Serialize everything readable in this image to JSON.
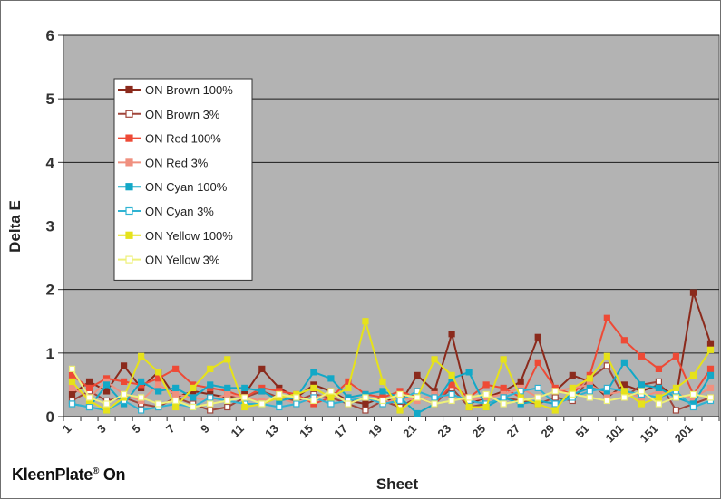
{
  "chart_data": {
    "type": "line",
    "xlabel": "Sheet",
    "ylabel": "Delta E",
    "ylim": [
      0,
      6
    ],
    "yticks": [
      0,
      1,
      2,
      3,
      4,
      5,
      6
    ],
    "grid": true,
    "legend_position": "upper-left",
    "x": [
      "1",
      "2",
      "3",
      "4",
      "5",
      "6",
      "7",
      "8",
      "9",
      "10",
      "11",
      "12",
      "13",
      "14",
      "15",
      "16",
      "17",
      "18",
      "19",
      "20",
      "21",
      "22",
      "23",
      "24",
      "25",
      "26",
      "27",
      "28",
      "29",
      "30",
      "51",
      "76",
      "101",
      "126",
      "151",
      "176",
      "201",
      "226"
    ],
    "xtick_labels": [
      "1",
      "3",
      "5",
      "7",
      "9",
      "11",
      "13",
      "15",
      "17",
      "19",
      "21",
      "23",
      "25",
      "27",
      "29",
      "51",
      "101",
      "151",
      "201"
    ],
    "series": [
      {
        "name": "ON Brown 100%",
        "color": "#8b2a1c",
        "marker": "filled-square",
        "values": [
          0.35,
          0.55,
          0.4,
          0.8,
          0.45,
          0.7,
          0.3,
          0.4,
          0.35,
          0.3,
          0.35,
          0.75,
          0.45,
          0.3,
          0.5,
          0.4,
          0.25,
          0.2,
          0.3,
          0.2,
          0.65,
          0.4,
          1.3,
          0.2,
          0.3,
          0.4,
          0.55,
          1.25,
          0.4,
          0.65,
          0.55,
          0.3,
          0.5,
          0.4,
          0.5,
          0.3,
          1.95,
          1.15
        ]
      },
      {
        "name": "ON Brown 3%",
        "color": "#a0453a",
        "marker": "open-square",
        "values": [
          0.25,
          0.4,
          0.25,
          0.3,
          0.2,
          0.15,
          0.3,
          0.2,
          0.1,
          0.15,
          0.3,
          0.4,
          0.3,
          0.25,
          0.35,
          0.3,
          0.2,
          0.1,
          0.25,
          0.15,
          0.3,
          0.2,
          0.45,
          0.15,
          0.2,
          0.3,
          0.25,
          0.2,
          0.3,
          0.25,
          0.6,
          0.8,
          0.3,
          0.5,
          0.55,
          0.1,
          0.2,
          0.3
        ]
      },
      {
        "name": "ON Red 100%",
        "color": "#ee4a36",
        "marker": "filled-square",
        "values": [
          0.65,
          0.45,
          0.6,
          0.55,
          0.5,
          0.6,
          0.75,
          0.5,
          0.45,
          0.4,
          0.3,
          0.45,
          0.4,
          0.35,
          0.2,
          0.3,
          0.55,
          0.35,
          0.3,
          0.4,
          0.3,
          0.2,
          0.5,
          0.3,
          0.5,
          0.45,
          0.3,
          0.85,
          0.45,
          0.35,
          0.65,
          1.55,
          1.2,
          0.95,
          0.75,
          0.95,
          0.35,
          0.75
        ]
      },
      {
        "name": "ON Red 3%",
        "color": "#f0907f",
        "marker": "filled-square",
        "values": [
          0.45,
          0.3,
          0.55,
          0.35,
          0.25,
          0.5,
          0.35,
          0.3,
          0.25,
          0.35,
          0.3,
          0.25,
          0.3,
          0.2,
          0.3,
          0.35,
          0.25,
          0.3,
          0.2,
          0.3,
          0.25,
          0.35,
          0.3,
          0.25,
          0.3,
          0.35,
          0.45,
          0.3,
          0.4,
          0.45,
          0.5,
          0.35,
          0.4,
          0.3,
          0.4,
          0.35,
          0.3,
          0.45
        ]
      },
      {
        "name": "ON Cyan 100%",
        "color": "#13a8c7",
        "marker": "filled-square",
        "values": [
          0.2,
          0.15,
          0.5,
          0.2,
          0.55,
          0.4,
          0.45,
          0.3,
          0.5,
          0.45,
          0.45,
          0.4,
          0.25,
          0.3,
          0.7,
          0.6,
          0.3,
          0.35,
          0.4,
          0.3,
          0.05,
          0.2,
          0.6,
          0.7,
          0.15,
          0.3,
          0.2,
          0.25,
          0.2,
          0.35,
          0.45,
          0.4,
          0.85,
          0.5,
          0.45,
          0.3,
          0.2,
          0.65
        ]
      },
      {
        "name": "ON Cyan 3%",
        "color": "#2fb3d3",
        "marker": "open-square",
        "values": [
          0.2,
          0.15,
          0.1,
          0.25,
          0.1,
          0.15,
          0.2,
          0.15,
          0.3,
          0.25,
          0.2,
          0.2,
          0.15,
          0.2,
          0.3,
          0.2,
          0.25,
          0.3,
          0.2,
          0.25,
          0.4,
          0.3,
          0.35,
          0.25,
          0.2,
          0.3,
          0.4,
          0.45,
          0.2,
          0.3,
          0.4,
          0.45,
          0.4,
          0.35,
          0.3,
          0.4,
          0.15,
          0.25
        ]
      },
      {
        "name": "ON Yellow 100%",
        "color": "#e6e21a",
        "marker": "filled-square",
        "values": [
          0.55,
          0.25,
          0.1,
          0.3,
          0.95,
          0.7,
          0.15,
          0.45,
          0.75,
          0.9,
          0.15,
          0.2,
          0.3,
          0.35,
          0.45,
          0.3,
          0.45,
          1.5,
          0.55,
          0.1,
          0.3,
          0.9,
          0.65,
          0.15,
          0.15,
          0.9,
          0.3,
          0.2,
          0.1,
          0.45,
          0.6,
          0.95,
          0.4,
          0.2,
          0.3,
          0.45,
          0.65,
          1.05
        ]
      },
      {
        "name": "ON Yellow 3%",
        "color": "#eef07a",
        "marker": "open-square",
        "values": [
          0.75,
          0.3,
          0.2,
          0.35,
          0.3,
          0.2,
          0.25,
          0.15,
          0.2,
          0.25,
          0.3,
          0.2,
          0.35,
          0.3,
          0.25,
          0.4,
          0.2,
          0.3,
          0.25,
          0.35,
          0.3,
          0.2,
          0.25,
          0.3,
          0.35,
          0.2,
          0.25,
          0.3,
          0.4,
          0.35,
          0.3,
          0.25,
          0.3,
          0.4,
          0.2,
          0.3,
          0.35,
          0.3
        ]
      }
    ]
  },
  "caption": {
    "brand": "KleenPlate",
    "mark": "®",
    "suffix": " On"
  }
}
